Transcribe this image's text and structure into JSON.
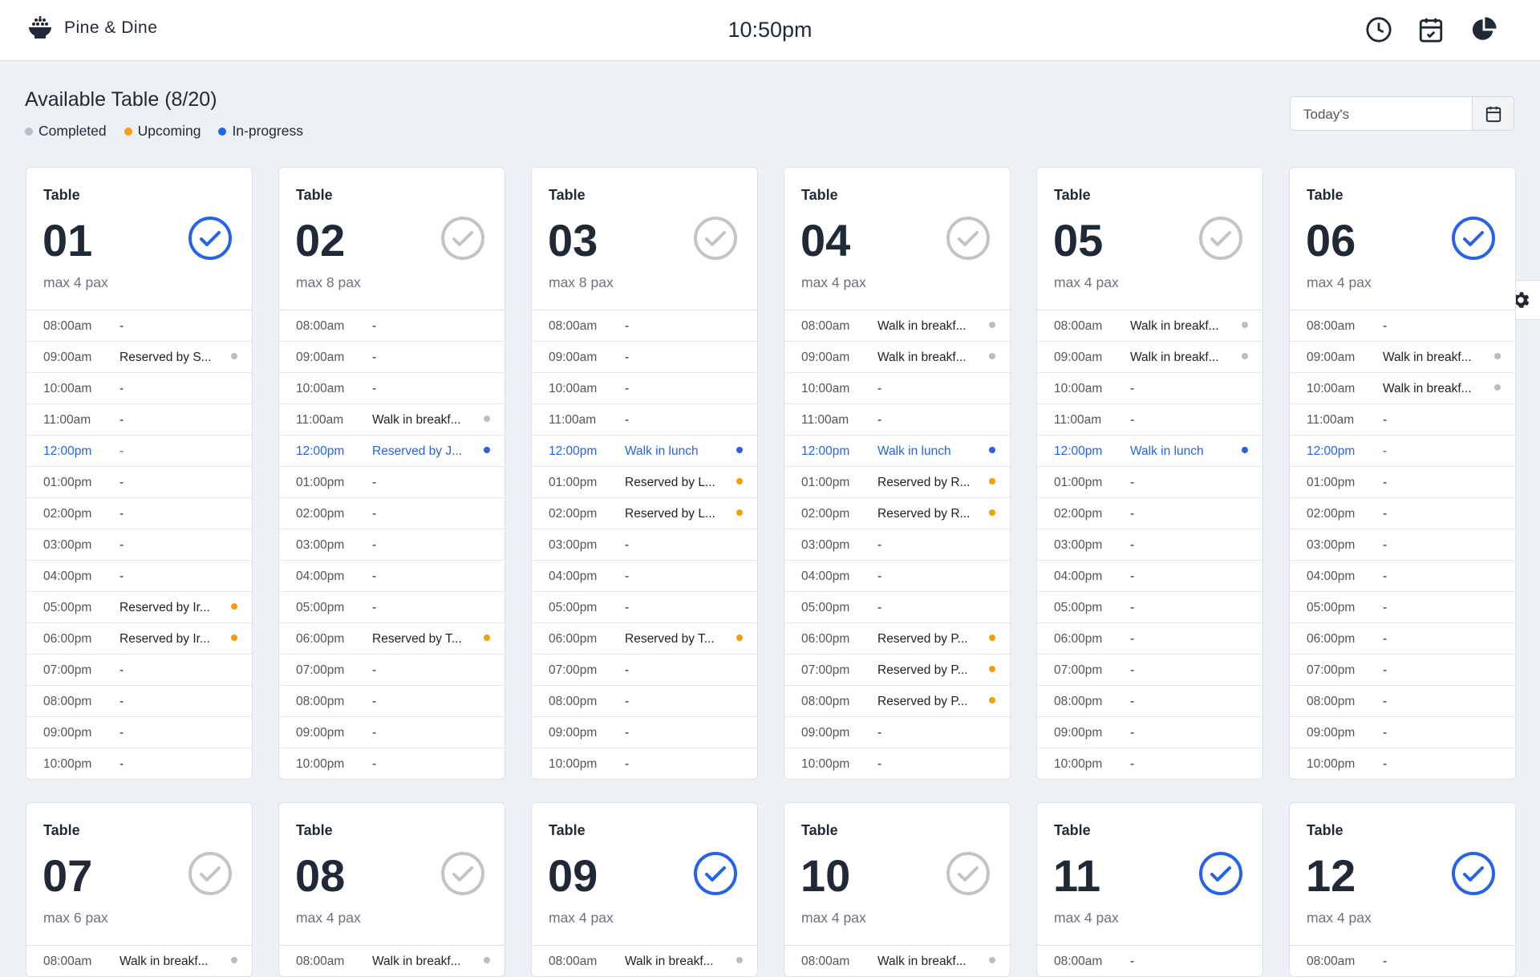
{
  "header": {
    "brand": "Pine & Dine",
    "time": "10:50pm"
  },
  "title": "Available Table (8/20)",
  "legend": [
    {
      "label": "Completed",
      "status": "completed",
      "color": "#b8bec8"
    },
    {
      "label": "Upcoming",
      "status": "upcoming",
      "color": "#f59e0b"
    },
    {
      "label": "In-progress",
      "status": "in-progress",
      "color": "#2563eb"
    }
  ],
  "date_filter": {
    "placeholder": "Today's"
  },
  "tables": [
    {
      "label": "Table",
      "number": "01",
      "pax": "max 4 pax",
      "checked": true,
      "slots": [
        [
          "08:00am",
          "-",
          null
        ],
        [
          "09:00am",
          "Reserved by S...",
          "completed"
        ],
        [
          "10:00am",
          "-",
          null
        ],
        [
          "11:00am",
          "-",
          null
        ],
        [
          "12:00pm",
          "-",
          null,
          true
        ],
        [
          "01:00pm",
          "-",
          null
        ],
        [
          "02:00pm",
          "-",
          null
        ],
        [
          "03:00pm",
          "-",
          null
        ],
        [
          "04:00pm",
          "-",
          null
        ],
        [
          "05:00pm",
          "Reserved by Ir...",
          "upcoming"
        ],
        [
          "06:00pm",
          "Reserved by Ir...",
          "upcoming"
        ],
        [
          "07:00pm",
          "-",
          null
        ],
        [
          "08:00pm",
          "-",
          null
        ],
        [
          "09:00pm",
          "-",
          null
        ],
        [
          "10:00pm",
          "-",
          null
        ]
      ]
    },
    {
      "label": "Table",
      "number": "02",
      "pax": "max 8 pax",
      "checked": false,
      "slots": [
        [
          "08:00am",
          "-",
          null
        ],
        [
          "09:00am",
          "-",
          null
        ],
        [
          "10:00am",
          "-",
          null
        ],
        [
          "11:00am",
          "Walk in breakf...",
          "completed"
        ],
        [
          "12:00pm",
          "Reserved by J...",
          "in-progress",
          true
        ],
        [
          "01:00pm",
          "-",
          null
        ],
        [
          "02:00pm",
          "-",
          null
        ],
        [
          "03:00pm",
          "-",
          null
        ],
        [
          "04:00pm",
          "-",
          null
        ],
        [
          "05:00pm",
          "-",
          null
        ],
        [
          "06:00pm",
          "Reserved by T...",
          "upcoming"
        ],
        [
          "07:00pm",
          "-",
          null
        ],
        [
          "08:00pm",
          "-",
          null
        ],
        [
          "09:00pm",
          "-",
          null
        ],
        [
          "10:00pm",
          "-",
          null
        ]
      ]
    },
    {
      "label": "Table",
      "number": "03",
      "pax": "max 8 pax",
      "checked": false,
      "slots": [
        [
          "08:00am",
          "-",
          null
        ],
        [
          "09:00am",
          "-",
          null
        ],
        [
          "10:00am",
          "-",
          null
        ],
        [
          "11:00am",
          "-",
          null
        ],
        [
          "12:00pm",
          "Walk in lunch",
          "in-progress",
          true
        ],
        [
          "01:00pm",
          "Reserved by L...",
          "upcoming"
        ],
        [
          "02:00pm",
          "Reserved by L...",
          "upcoming"
        ],
        [
          "03:00pm",
          "-",
          null
        ],
        [
          "04:00pm",
          "-",
          null
        ],
        [
          "05:00pm",
          "-",
          null
        ],
        [
          "06:00pm",
          "Reserved by T...",
          "upcoming"
        ],
        [
          "07:00pm",
          "-",
          null
        ],
        [
          "08:00pm",
          "-",
          null
        ],
        [
          "09:00pm",
          "-",
          null
        ],
        [
          "10:00pm",
          "-",
          null
        ]
      ]
    },
    {
      "label": "Table",
      "number": "04",
      "pax": "max 4 pax",
      "checked": false,
      "slots": [
        [
          "08:00am",
          "Walk in breakf...",
          "completed"
        ],
        [
          "09:00am",
          "Walk in breakf...",
          "completed"
        ],
        [
          "10:00am",
          "-",
          null
        ],
        [
          "11:00am",
          "-",
          null
        ],
        [
          "12:00pm",
          "Walk in lunch",
          "in-progress",
          true
        ],
        [
          "01:00pm",
          "Reserved by R...",
          "upcoming"
        ],
        [
          "02:00pm",
          "Reserved by R...",
          "upcoming"
        ],
        [
          "03:00pm",
          "-",
          null
        ],
        [
          "04:00pm",
          "-",
          null
        ],
        [
          "05:00pm",
          "-",
          null
        ],
        [
          "06:00pm",
          "Reserved by P...",
          "upcoming"
        ],
        [
          "07:00pm",
          "Reserved by P...",
          "upcoming"
        ],
        [
          "08:00pm",
          "Reserved by P...",
          "upcoming"
        ],
        [
          "09:00pm",
          "-",
          null
        ],
        [
          "10:00pm",
          "-",
          null
        ]
      ]
    },
    {
      "label": "Table",
      "number": "05",
      "pax": "max 4 pax",
      "checked": false,
      "slots": [
        [
          "08:00am",
          "Walk in breakf...",
          "completed"
        ],
        [
          "09:00am",
          "Walk in breakf...",
          "completed"
        ],
        [
          "10:00am",
          "-",
          null
        ],
        [
          "11:00am",
          "-",
          null
        ],
        [
          "12:00pm",
          "Walk in lunch",
          "in-progress",
          true
        ],
        [
          "01:00pm",
          "-",
          null
        ],
        [
          "02:00pm",
          "-",
          null
        ],
        [
          "03:00pm",
          "-",
          null
        ],
        [
          "04:00pm",
          "-",
          null
        ],
        [
          "05:00pm",
          "-",
          null
        ],
        [
          "06:00pm",
          "-",
          null
        ],
        [
          "07:00pm",
          "-",
          null
        ],
        [
          "08:00pm",
          "-",
          null
        ],
        [
          "09:00pm",
          "-",
          null
        ],
        [
          "10:00pm",
          "-",
          null
        ]
      ]
    },
    {
      "label": "Table",
      "number": "06",
      "pax": "max 4 pax",
      "checked": true,
      "slots": [
        [
          "08:00am",
          "-",
          null
        ],
        [
          "09:00am",
          "Walk in breakf...",
          "completed"
        ],
        [
          "10:00am",
          "Walk in breakf...",
          "completed"
        ],
        [
          "11:00am",
          "-",
          null
        ],
        [
          "12:00pm",
          "-",
          null,
          true
        ],
        [
          "01:00pm",
          "-",
          null
        ],
        [
          "02:00pm",
          "-",
          null
        ],
        [
          "03:00pm",
          "-",
          null
        ],
        [
          "04:00pm",
          "-",
          null
        ],
        [
          "05:00pm",
          "-",
          null
        ],
        [
          "06:00pm",
          "-",
          null
        ],
        [
          "07:00pm",
          "-",
          null
        ],
        [
          "08:00pm",
          "-",
          null
        ],
        [
          "09:00pm",
          "-",
          null
        ],
        [
          "10:00pm",
          "-",
          null
        ]
      ]
    },
    {
      "label": "Table",
      "number": "07",
      "pax": "max 6 pax",
      "checked": false,
      "slots": [
        [
          "08:00am",
          "Walk in breakf...",
          "completed"
        ]
      ]
    },
    {
      "label": "Table",
      "number": "08",
      "pax": "max 4 pax",
      "checked": false,
      "slots": [
        [
          "08:00am",
          "Walk in breakf...",
          "completed"
        ]
      ]
    },
    {
      "label": "Table",
      "number": "09",
      "pax": "max 4 pax",
      "checked": true,
      "slots": [
        [
          "08:00am",
          "Walk in breakf...",
          "completed"
        ]
      ]
    },
    {
      "label": "Table",
      "number": "10",
      "pax": "max 4 pax",
      "checked": false,
      "slots": [
        [
          "08:00am",
          "Walk in breakf...",
          "completed"
        ]
      ]
    },
    {
      "label": "Table",
      "number": "11",
      "pax": "max 4 pax",
      "checked": true,
      "slots": [
        [
          "08:00am",
          "-",
          null
        ]
      ]
    },
    {
      "label": "Table",
      "number": "12",
      "pax": "max 4 pax",
      "checked": true,
      "slots": [
        [
          "08:00am",
          "-",
          null
        ]
      ]
    }
  ]
}
